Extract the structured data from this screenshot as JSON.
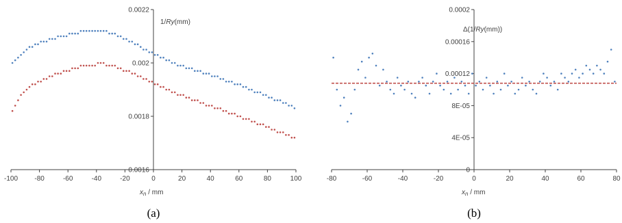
{
  "chart_data": [
    {
      "type": "scatter",
      "panel_label": "(a)",
      "xlabel": {
        "var": "x",
        "sub": "n",
        "unit": " / mm"
      },
      "ylabel": {
        "prefix": "1/",
        "var": "Ry",
        "unit": "(mm)"
      },
      "xlim": [
        -100,
        100
      ],
      "ylim": [
        0.0016,
        0.0022
      ],
      "x_ticks": [
        -100,
        -80,
        -60,
        -40,
        -20,
        0,
        20,
        40,
        60,
        80,
        100
      ],
      "y_ticks": [
        {
          "value": 0.0016,
          "label": "0.0016"
        },
        {
          "value": 0.0018,
          "label": "0.0018"
        },
        {
          "value": 0.002,
          "label": "0.002"
        },
        {
          "value": 0.0022,
          "label": "0.0022"
        }
      ],
      "grid": false,
      "series": [
        {
          "color": "#4f81bd",
          "x": [
            -99,
            -97,
            -95,
            -93,
            -91,
            -89,
            -87,
            -85,
            -83,
            -81,
            -79,
            -77,
            -75,
            -73,
            -71,
            -69,
            -67,
            -65,
            -63,
            -61,
            -59,
            -57,
            -55,
            -53,
            -51,
            -49,
            -47,
            -45,
            -43,
            -41,
            -39,
            -37,
            -35,
            -33,
            -31,
            -29,
            -27,
            -25,
            -23,
            -21,
            -19,
            -17,
            -15,
            -13,
            -11,
            -9,
            -7,
            -5,
            -3,
            -1,
            1,
            3,
            5,
            7,
            9,
            11,
            13,
            15,
            17,
            19,
            21,
            23,
            25,
            27,
            29,
            31,
            33,
            35,
            37,
            39,
            41,
            43,
            45,
            47,
            49,
            51,
            53,
            55,
            57,
            59,
            61,
            63,
            65,
            67,
            69,
            71,
            73,
            75,
            77,
            79,
            81,
            83,
            85,
            87,
            89,
            91,
            93,
            95,
            97,
            99
          ],
          "y": [
            0.002,
            0.00201,
            0.00202,
            0.00203,
            0.00204,
            0.00205,
            0.00206,
            0.00206,
            0.00207,
            0.00207,
            0.00208,
            0.00208,
            0.00208,
            0.00209,
            0.00209,
            0.00209,
            0.0021,
            0.0021,
            0.0021,
            0.0021,
            0.00211,
            0.00211,
            0.00211,
            0.00211,
            0.00212,
            0.00212,
            0.00212,
            0.00212,
            0.00212,
            0.00212,
            0.00212,
            0.00212,
            0.00212,
            0.00212,
            0.00211,
            0.00211,
            0.00211,
            0.0021,
            0.0021,
            0.00209,
            0.00209,
            0.00208,
            0.00208,
            0.00207,
            0.00207,
            0.00206,
            0.00205,
            0.00205,
            0.00204,
            0.00204,
            0.00203,
            0.00203,
            0.00202,
            0.00202,
            0.00201,
            0.00201,
            0.002,
            0.002,
            0.00199,
            0.00199,
            0.00199,
            0.00198,
            0.00198,
            0.00198,
            0.00197,
            0.00197,
            0.00197,
            0.00196,
            0.00196,
            0.00196,
            0.00195,
            0.00195,
            0.00195,
            0.00194,
            0.00194,
            0.00193,
            0.00193,
            0.00193,
            0.00192,
            0.00192,
            0.00192,
            0.00191,
            0.00191,
            0.0019,
            0.0019,
            0.00189,
            0.00189,
            0.00189,
            0.00188,
            0.00188,
            0.00187,
            0.00187,
            0.00186,
            0.00186,
            0.00186,
            0.00185,
            0.00185,
            0.00184,
            0.00184,
            0.00183
          ]
        },
        {
          "color": "#c0504d",
          "x": [
            -99,
            -97,
            -95,
            -93,
            -91,
            -89,
            -87,
            -85,
            -83,
            -81,
            -79,
            -77,
            -75,
            -73,
            -71,
            -69,
            -67,
            -65,
            -63,
            -61,
            -59,
            -57,
            -55,
            -53,
            -51,
            -49,
            -47,
            -45,
            -43,
            -41,
            -39,
            -37,
            -35,
            -33,
            -31,
            -29,
            -27,
            -25,
            -23,
            -21,
            -19,
            -17,
            -15,
            -13,
            -11,
            -9,
            -7,
            -5,
            -3,
            -1,
            1,
            3,
            5,
            7,
            9,
            11,
            13,
            15,
            17,
            19,
            21,
            23,
            25,
            27,
            29,
            31,
            33,
            35,
            37,
            39,
            41,
            43,
            45,
            47,
            49,
            51,
            53,
            55,
            57,
            59,
            61,
            63,
            65,
            67,
            69,
            71,
            73,
            75,
            77,
            79,
            81,
            83,
            85,
            87,
            89,
            91,
            93,
            95,
            97,
            99
          ],
          "y": [
            0.00182,
            0.00184,
            0.00186,
            0.00188,
            0.00189,
            0.0019,
            0.00191,
            0.00192,
            0.00192,
            0.00193,
            0.00193,
            0.00194,
            0.00194,
            0.00195,
            0.00195,
            0.00196,
            0.00196,
            0.00196,
            0.00197,
            0.00197,
            0.00197,
            0.00198,
            0.00198,
            0.00198,
            0.00199,
            0.00199,
            0.00199,
            0.00199,
            0.00199,
            0.00199,
            0.002,
            0.002,
            0.002,
            0.00199,
            0.00199,
            0.00199,
            0.00199,
            0.00198,
            0.00198,
            0.00197,
            0.00197,
            0.00197,
            0.00196,
            0.00196,
            0.00195,
            0.00195,
            0.00194,
            0.00194,
            0.00193,
            0.00193,
            0.00192,
            0.00192,
            0.00191,
            0.00191,
            0.0019,
            0.0019,
            0.00189,
            0.00189,
            0.00188,
            0.00188,
            0.00188,
            0.00187,
            0.00187,
            0.00186,
            0.00186,
            0.00186,
            0.00185,
            0.00185,
            0.00184,
            0.00184,
            0.00184,
            0.00183,
            0.00183,
            0.00183,
            0.00182,
            0.00182,
            0.00181,
            0.00181,
            0.00181,
            0.0018,
            0.0018,
            0.00179,
            0.00179,
            0.00179,
            0.00178,
            0.00178,
            0.00177,
            0.00177,
            0.00177,
            0.00176,
            0.00176,
            0.00175,
            0.00175,
            0.00174,
            0.00174,
            0.00174,
            0.00173,
            0.00173,
            0.00172,
            0.00172
          ]
        }
      ]
    },
    {
      "type": "scatter",
      "panel_label": "(b)",
      "xlabel": {
        "var": "x",
        "sub": "n",
        "unit": " / mm"
      },
      "ylabel": {
        "prefix": "Δ(1/",
        "var": "Ry",
        "unit": "(mm))"
      },
      "xlim": [
        -80,
        80
      ],
      "ylim": [
        0,
        0.0002
      ],
      "x_ticks": [
        -80,
        -60,
        -40,
        -20,
        0,
        20,
        40,
        60,
        80
      ],
      "y_ticks": [
        {
          "value": 0,
          "label": "0"
        },
        {
          "value": 4e-05,
          "label": "4E-05"
        },
        {
          "value": 8e-05,
          "label": "8E-05"
        },
        {
          "value": 0.00012,
          "label": "0.00012"
        },
        {
          "value": 0.00016,
          "label": "0.00016"
        },
        {
          "value": 0.0002,
          "label": "0.0002"
        }
      ],
      "grid": false,
      "series": [
        {
          "color": "#4f81bd",
          "x": [
            -79,
            -77,
            -75,
            -73,
            -71,
            -69,
            -67,
            -65,
            -63,
            -61,
            -59,
            -57,
            -55,
            -53,
            -51,
            -49,
            -47,
            -45,
            -43,
            -41,
            -39,
            -37,
            -35,
            -33,
            -31,
            -29,
            -27,
            -25,
            -23,
            -21,
            -19,
            -17,
            -15,
            -13,
            -11,
            -9,
            -7,
            -5,
            -3,
            -1,
            1,
            3,
            5,
            7,
            9,
            11,
            13,
            15,
            17,
            19,
            21,
            23,
            25,
            27,
            29,
            31,
            33,
            35,
            37,
            39,
            41,
            43,
            45,
            47,
            49,
            51,
            53,
            55,
            57,
            59,
            61,
            63,
            65,
            67,
            69,
            71,
            73,
            75,
            77,
            79
          ],
          "y": [
            0.00014,
            0.0001,
            8e-05,
            9e-05,
            6e-05,
            7e-05,
            0.0001,
            0.000125,
            0.000135,
            0.000115,
            0.00014,
            0.000145,
            0.00013,
            0.000105,
            0.000125,
            0.00011,
            0.0001,
            9.5e-05,
            0.000115,
            0.000105,
            0.0001,
            0.00011,
            9.5e-05,
            9e-05,
            0.00011,
            0.000115,
            0.000105,
            9.5e-05,
            0.00011,
            0.00012,
            0.000105,
            0.0001,
            0.00011,
            9.5e-05,
            0.000115,
            0.0001,
            0.00011,
            0.000105,
            9.5e-05,
            0.00012,
            0.000105,
            0.00011,
            0.0001,
            0.000115,
            0.000105,
            9.5e-05,
            0.00011,
            0.0001,
            0.00012,
            0.000105,
            0.00011,
            9.5e-05,
            0.0001,
            0.000115,
            0.000105,
            0.00011,
            0.0001,
            9.5e-05,
            0.00011,
            0.00012,
            0.000115,
            0.000105,
            0.00011,
            0.0001,
            0.00012,
            0.000115,
            0.00011,
            0.00012,
            0.000125,
            0.000115,
            0.00012,
            0.00013,
            0.000125,
            0.00012,
            0.00013,
            0.000125,
            0.00012,
            0.000135,
            0.00015,
            0.00011
          ]
        }
      ],
      "reference_line": {
        "y": 0.000108,
        "color": "#c0504d",
        "style": "dashed"
      }
    }
  ]
}
